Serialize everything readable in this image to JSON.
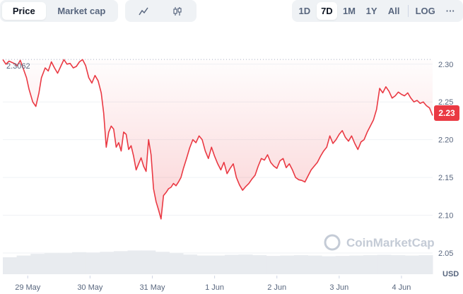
{
  "toolbar": {
    "type_tabs": [
      {
        "label": "Price",
        "active": true
      },
      {
        "label": "Market cap",
        "active": false
      }
    ],
    "style_icons": [
      {
        "icon": "line-chart-icon",
        "active": false
      },
      {
        "icon": "candlestick-icon",
        "active": false
      }
    ],
    "ranges": [
      {
        "label": "1D",
        "active": false
      },
      {
        "label": "7D",
        "active": true
      },
      {
        "label": "1M",
        "active": false
      },
      {
        "label": "1Y",
        "active": false
      },
      {
        "label": "All",
        "active": false
      }
    ],
    "log_label": "LOG",
    "more_label": "···"
  },
  "chart": {
    "start_price_label": "2.3062",
    "current_price_label": "2.23",
    "currency_label": "USD",
    "watermark": "CoinMarketCap",
    "line_color": "#ea3943",
    "price_badge_color": "#ea3943"
  },
  "chart_data": {
    "type": "area",
    "ylim": [
      2.02,
      2.34
    ],
    "y_ticks": [
      "2.30",
      "2.25",
      "2.20",
      "2.15",
      "2.10",
      "2.05"
    ],
    "x_ticks": [
      "29 May",
      "30 May",
      "31 May",
      "1 Jun",
      "2 Jun",
      "3 Jun",
      "4 Jun"
    ],
    "x_tick_positions": [
      0.5,
      1.5,
      2.5,
      3.5,
      4.5,
      5.5,
      6.5
    ],
    "xlim": [
      0.1,
      7.0
    ],
    "baseline_price": 2.3062,
    "series": [
      {
        "x": [
          0.1,
          0.15,
          0.2,
          0.28,
          0.33,
          0.38,
          0.42,
          0.48,
          0.52,
          0.58,
          0.63,
          0.68,
          0.72,
          0.78,
          0.83,
          0.88,
          0.93,
          0.98,
          1.03,
          1.08,
          1.13,
          1.18,
          1.23,
          1.28,
          1.33,
          1.38,
          1.43,
          1.48,
          1.53,
          1.58,
          1.63,
          1.68,
          1.72,
          1.76,
          1.8,
          1.84,
          1.88,
          1.92,
          1.96,
          2.0,
          2.04,
          2.08,
          2.12,
          2.16,
          2.2,
          2.24,
          2.28,
          2.32,
          2.36,
          2.4,
          2.44,
          2.48,
          2.52,
          2.56,
          2.6,
          2.64,
          2.68,
          2.72,
          2.76,
          2.8,
          2.84,
          2.88,
          2.92,
          2.96,
          3.0,
          3.05,
          3.1,
          3.15,
          3.2,
          3.25,
          3.3,
          3.35,
          3.4,
          3.45,
          3.5,
          3.55,
          3.6,
          3.65,
          3.7,
          3.75,
          3.8,
          3.85,
          3.9,
          3.95,
          4.0,
          4.05,
          4.1,
          4.15,
          4.2,
          4.25,
          4.3,
          4.35,
          4.4,
          4.45,
          4.5,
          4.55,
          4.6,
          4.65,
          4.7,
          4.75,
          4.8,
          4.85,
          4.9,
          4.95,
          5.0,
          5.05,
          5.1,
          5.15,
          5.2,
          5.25,
          5.3,
          5.35,
          5.4,
          5.45,
          5.5,
          5.55,
          5.6,
          5.65,
          5.7,
          5.75,
          5.8,
          5.85,
          5.9,
          5.95,
          6.0,
          6.05,
          6.1,
          6.15,
          6.2,
          6.25,
          6.3,
          6.35,
          6.4,
          6.45,
          6.5,
          6.55,
          6.6,
          6.65,
          6.7,
          6.75,
          6.8,
          6.85,
          6.9,
          6.95,
          7.0
        ],
        "values": [
          2.306,
          2.3,
          2.304,
          2.301,
          2.298,
          2.305,
          2.296,
          2.282,
          2.267,
          2.25,
          2.244,
          2.262,
          2.282,
          2.295,
          2.291,
          2.303,
          2.295,
          2.288,
          2.297,
          2.306,
          2.3,
          2.301,
          2.295,
          2.297,
          2.303,
          2.306,
          2.298,
          2.282,
          2.275,
          2.285,
          2.278,
          2.262,
          2.235,
          2.19,
          2.21,
          2.218,
          2.214,
          2.19,
          2.196,
          2.185,
          2.21,
          2.207,
          2.187,
          2.192,
          2.178,
          2.16,
          2.168,
          2.176,
          2.165,
          2.158,
          2.2,
          2.18,
          2.135,
          2.118,
          2.107,
          2.095,
          2.126,
          2.13,
          2.135,
          2.137,
          2.142,
          2.139,
          2.144,
          2.15,
          2.162,
          2.175,
          2.189,
          2.2,
          2.196,
          2.205,
          2.2,
          2.185,
          2.175,
          2.19,
          2.178,
          2.168,
          2.16,
          2.17,
          2.155,
          2.162,
          2.168,
          2.15,
          2.14,
          2.133,
          2.138,
          2.142,
          2.148,
          2.153,
          2.165,
          2.175,
          2.173,
          2.18,
          2.17,
          2.165,
          2.162,
          2.172,
          2.175,
          2.163,
          2.168,
          2.16,
          2.15,
          2.147,
          2.146,
          2.144,
          2.152,
          2.16,
          2.165,
          2.17,
          2.178,
          2.185,
          2.19,
          2.205,
          2.195,
          2.2,
          2.207,
          2.212,
          2.203,
          2.198,
          2.205,
          2.195,
          2.187,
          2.197,
          2.2,
          2.21,
          2.218,
          2.226,
          2.24,
          2.268,
          2.262,
          2.27,
          2.264,
          2.255,
          2.258,
          2.263,
          2.26,
          2.258,
          2.262,
          2.255,
          2.25,
          2.252,
          2.248,
          2.25,
          2.245,
          2.242,
          2.232
        ]
      }
    ],
    "volume_profile": [
      0.5,
      0.55,
      0.6,
      0.62,
      0.62,
      0.65,
      0.64,
      0.66,
      0.68,
      0.7,
      0.7,
      0.66,
      0.62,
      0.58,
      0.55,
      0.55,
      0.57,
      0.58,
      0.56,
      0.54,
      0.55,
      0.56,
      0.55,
      0.53,
      0.54,
      0.55,
      0.56,
      0.57,
      0.56,
      0.55,
      0.56
    ]
  }
}
